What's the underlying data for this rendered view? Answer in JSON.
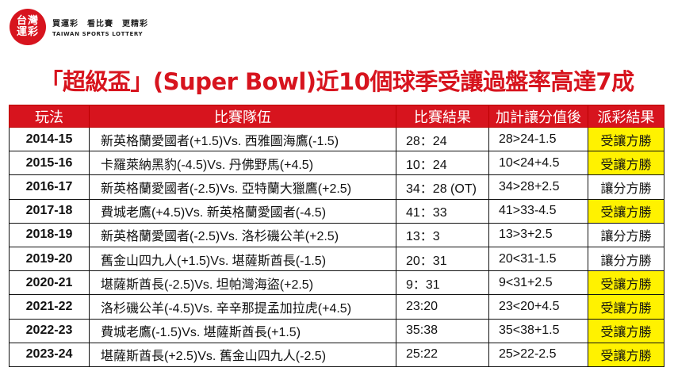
{
  "brand": {
    "logo_line1": "台灣",
    "logo_line2": "運彩",
    "slogan": "買運彩　看比賽　更精彩",
    "english": "TAIWAN SPORTS LOTTERY",
    "color": "#d7141e"
  },
  "headline": "「超級盃」(Super Bowl)近10個球季受讓過盤率高達7成",
  "table": {
    "headers": [
      "玩法",
      "比賽隊伍",
      "比賽結果",
      "加計讓分值後",
      "派彩結果"
    ],
    "rows": [
      {
        "season": "2014-15",
        "teams": "新英格蘭愛國者(+1.5)Vs. 西雅圖海鷹(-1.5)",
        "score": "28：24",
        "adjusted": "28>24-1.5",
        "result": "受讓方勝",
        "highlight": true
      },
      {
        "season": "2015-16",
        "teams": "卡羅萊納黑豹(-4.5)Vs. 丹佛野馬(+4.5)",
        "score": "10：24",
        "adjusted": "10<24+4.5",
        "result": "受讓方勝",
        "highlight": true
      },
      {
        "season": "2016-17",
        "teams": "新英格蘭愛國者(-2.5)Vs. 亞特蘭大獵鷹(+2.5)",
        "score": "34：28 (OT)",
        "adjusted": "34>28+2.5",
        "result": "讓分方勝",
        "highlight": false
      },
      {
        "season": "2017-18",
        "teams": "費城老鷹(+4.5)Vs. 新英格蘭愛國者(-4.5)",
        "score": "41：33",
        "adjusted": "41>33-4.5",
        "result": "受讓方勝",
        "highlight": true
      },
      {
        "season": "2018-19",
        "teams": "新英格蘭愛國者(-2.5)Vs. 洛杉磯公羊(+2.5)",
        "score": "13：3",
        "adjusted": "13>3+2.5",
        "result": "讓分方勝",
        "highlight": false
      },
      {
        "season": "2019-20",
        "teams": "舊金山四九人(+1.5)Vs. 堪薩斯酋長(-1.5)",
        "score": "20：31",
        "adjusted": "20<31-1.5",
        "result": "讓分方勝",
        "highlight": false
      },
      {
        "season": "2020-21",
        "teams": "堪薩斯酋長(-2.5)Vs. 坦帕灣海盜(+2.5)",
        "score": "9：31",
        "adjusted": "9<31+2.5",
        "result": "受讓方勝",
        "highlight": true
      },
      {
        "season": "2021-22",
        "teams": "洛杉磯公羊(-4.5)Vs. 辛辛那提孟加拉虎(+4.5)",
        "score": "23:20",
        "adjusted": "23<20+4.5",
        "result": "受讓方勝",
        "highlight": true
      },
      {
        "season": "2022-23",
        "teams": "費城老鷹(-1.5)Vs. 堪薩斯酋長(+1.5)",
        "score": "35:38",
        "adjusted": "35<38+1.5",
        "result": "受讓方勝",
        "highlight": true
      },
      {
        "season": "2023-24",
        "teams": "堪薩斯酋長(+2.5)Vs. 舊金山四九人(-2.5)",
        "score": "25:22",
        "adjusted": "25>22-2.5",
        "result": "受讓方勝",
        "highlight": true
      }
    ],
    "header_color": "#d7141e",
    "highlight_color": "#fff200"
  }
}
